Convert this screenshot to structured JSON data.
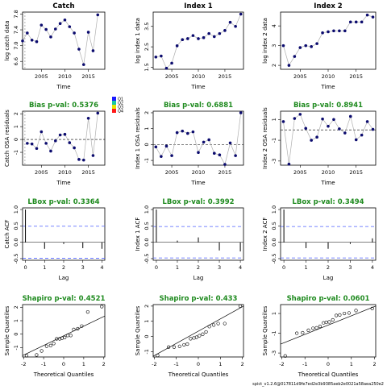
{
  "footer": "spict_v1.2.6@017811d9fe7ed2e3b9385aeb2e0021a58aea250e2",
  "colors": {
    "point": "#0b0b6e",
    "line": "#b0b0b0",
    "green": "#1e8a1e",
    "dashed": "#4a5cff",
    "sep": "#999999"
  },
  "legend": {
    "labels": [
      "Q1",
      "Q2",
      "Q3",
      "Q4"
    ],
    "colors": [
      "#1a1aff",
      "#18c9a3",
      "#e6e600",
      "#ff1a1a"
    ]
  },
  "chart_data": [
    {
      "id": "catch-data",
      "type": "line",
      "title": "Catch",
      "xlabel": "Time",
      "ylabel": "log catch data",
      "xlim": [
        2001,
        2018.5
      ],
      "ylim": [
        6.4,
        7.85
      ],
      "xticks": [
        2005,
        2010,
        2015
      ],
      "yticks": [
        6.6,
        7.0,
        7.4,
        7.8
      ],
      "vline": 2001.5,
      "points": [
        [
          2001,
          7.12
        ],
        [
          2002,
          7.32
        ],
        [
          2003,
          7.14
        ],
        [
          2004,
          7.1
        ],
        [
          2005,
          7.52
        ],
        [
          2006,
          7.41
        ],
        [
          2007,
          7.22
        ],
        [
          2008,
          7.42
        ],
        [
          2009,
          7.56
        ],
        [
          2010,
          7.65
        ],
        [
          2011,
          7.48
        ],
        [
          2012,
          7.32
        ],
        [
          2013,
          6.91
        ],
        [
          2014,
          6.52
        ],
        [
          2015,
          7.34
        ],
        [
          2016,
          6.87
        ],
        [
          2017,
          7.78
        ]
      ]
    },
    {
      "id": "index1-data",
      "type": "line",
      "title": "Index 1",
      "xlabel": "Time",
      "ylabel": "log index 1 data",
      "xlim": [
        2001.5,
        2018.5
      ],
      "ylim": [
        1.4,
        4.2
      ],
      "xticks": [
        2005,
        2010,
        2015
      ],
      "yticks": [
        1.5,
        2.5,
        3.5
      ],
      "points": [
        [
          2002,
          2.0
        ],
        [
          2003,
          2.05
        ],
        [
          2004,
          1.45
        ],
        [
          2005,
          1.7
        ],
        [
          2006,
          2.55
        ],
        [
          2007,
          2.85
        ],
        [
          2008,
          2.9
        ],
        [
          2009,
          3.05
        ],
        [
          2010,
          2.9
        ],
        [
          2011,
          2.95
        ],
        [
          2012,
          3.15
        ],
        [
          2013,
          3.0
        ],
        [
          2014,
          3.15
        ],
        [
          2015,
          3.3
        ],
        [
          2016,
          3.7
        ],
        [
          2017,
          3.5
        ],
        [
          2018,
          4.1
        ]
      ]
    },
    {
      "id": "index2-data",
      "type": "line",
      "title": "Index 2",
      "xlabel": "Time",
      "ylabel": "log index 2 data",
      "xlim": [
        2001.5,
        2018.5
      ],
      "ylim": [
        1.8,
        4.7
      ],
      "xticks": [
        2005,
        2010,
        2015
      ],
      "yticks": [
        2.0,
        3.0,
        4.0
      ],
      "points": [
        [
          2002,
          3.0
        ],
        [
          2003,
          2.0
        ],
        [
          2004,
          2.45
        ],
        [
          2005,
          2.9
        ],
        [
          2006,
          3.0
        ],
        [
          2007,
          2.95
        ],
        [
          2008,
          3.1
        ],
        [
          2009,
          3.65
        ],
        [
          2010,
          3.7
        ],
        [
          2011,
          3.75
        ],
        [
          2012,
          3.75
        ],
        [
          2013,
          3.75
        ],
        [
          2014,
          4.2
        ],
        [
          2015,
          4.2
        ],
        [
          2016,
          4.2
        ],
        [
          2017,
          4.55
        ],
        [
          2018,
          4.45
        ]
      ]
    },
    {
      "id": "catch-osa",
      "type": "line",
      "title": "Bias p-val: 0.5376",
      "xlabel": "Time",
      "ylabel": "Catch OSA residuals",
      "xlim": [
        2001,
        2018.5
      ],
      "ylim": [
        -2.0,
        2.2
      ],
      "xticks": [
        2005,
        2010,
        2015
      ],
      "yticks": [
        -1,
        0,
        1,
        2
      ],
      "hline": 0,
      "vline": 2001.5,
      "points": [
        [
          2002,
          -0.3
        ],
        [
          2003,
          -0.35
        ],
        [
          2004,
          -0.7
        ],
        [
          2005,
          0.6
        ],
        [
          2006,
          -0.3
        ],
        [
          2007,
          -0.9
        ],
        [
          2008,
          -0.1
        ],
        [
          2009,
          0.35
        ],
        [
          2010,
          0.4
        ],
        [
          2011,
          -0.25
        ],
        [
          2012,
          -0.65
        ],
        [
          2013,
          -1.55
        ],
        [
          2014,
          -1.6
        ],
        [
          2015,
          1.65
        ],
        [
          2016,
          -1.25
        ],
        [
          2017,
          2.05
        ]
      ]
    },
    {
      "id": "index1-osa",
      "type": "line",
      "title": "Bias p-val: 0.6881",
      "xlabel": "Time",
      "ylabel": "Index 1 OSA residuals",
      "xlim": [
        2001.5,
        2018.5
      ],
      "ylim": [
        -1.3,
        2.1
      ],
      "xticks": [
        2005,
        2010,
        2015
      ],
      "yticks": [
        -1.0,
        0.0,
        1.0,
        2.0
      ],
      "hline": 0,
      "points": [
        [
          2002,
          -0.15
        ],
        [
          2003,
          -0.75
        ],
        [
          2004,
          -0.1
        ],
        [
          2005,
          -0.7
        ],
        [
          2006,
          0.75
        ],
        [
          2007,
          0.85
        ],
        [
          2008,
          0.7
        ],
        [
          2009,
          0.8
        ],
        [
          2010,
          -0.5
        ],
        [
          2011,
          0.15
        ],
        [
          2012,
          0.3
        ],
        [
          2013,
          -0.55
        ],
        [
          2014,
          -0.65
        ],
        [
          2015,
          -1.25
        ],
        [
          2016,
          0.1
        ],
        [
          2017,
          -0.7
        ],
        [
          2018,
          2.0
        ]
      ]
    },
    {
      "id": "index2-osa",
      "type": "line",
      "title": "Bias p-val: 0.8941",
      "xlabel": "Time",
      "ylabel": "Index 2 OSA residuals",
      "xlim": [
        2001.5,
        2018.5
      ],
      "ylim": [
        -3.4,
        1.8
      ],
      "xticks": [
        2005,
        2010,
        2015
      ],
      "yticks": [
        -3,
        -1,
        1
      ],
      "hline": 0,
      "points": [
        [
          2002,
          0.8
        ],
        [
          2003,
          -3.3
        ],
        [
          2004,
          1.1
        ],
        [
          2005,
          1.5
        ],
        [
          2006,
          0.15
        ],
        [
          2007,
          -1.0
        ],
        [
          2008,
          -0.7
        ],
        [
          2009,
          1.05
        ],
        [
          2010,
          0.35
        ],
        [
          2011,
          1.0
        ],
        [
          2012,
          0.1
        ],
        [
          2013,
          -0.3
        ],
        [
          2014,
          1.3
        ],
        [
          2015,
          -0.95
        ],
        [
          2016,
          -0.5
        ],
        [
          2017,
          0.8
        ],
        [
          2018,
          0.05
        ]
      ]
    },
    {
      "id": "catch-acf",
      "type": "bar",
      "title": "LBox p-val: 0.3364",
      "xlabel": "Lag",
      "ylabel": "Catch ACF",
      "xlim": [
        -0.15,
        4.15
      ],
      "ylim": [
        -0.55,
        1.05
      ],
      "xticks": [
        0,
        1,
        2,
        3,
        4
      ],
      "yticks": [
        -0.5,
        0.0,
        0.5,
        1.0
      ],
      "conf": 0.49,
      "bars": [
        [
          0,
          1.0
        ],
        [
          1,
          -0.2
        ],
        [
          2,
          -0.05
        ],
        [
          3,
          -0.18
        ],
        [
          4,
          -0.2
        ]
      ]
    },
    {
      "id": "index1-acf",
      "type": "bar",
      "title": "LBox p-val: 0.3992",
      "xlabel": "Lag",
      "ylabel": "Index 1 ACF",
      "xlim": [
        -0.15,
        4.15
      ],
      "ylim": [
        -0.55,
        1.05
      ],
      "xticks": [
        0,
        1,
        2,
        3,
        4
      ],
      "yticks": [
        -0.5,
        0.0,
        0.5,
        1.0
      ],
      "conf": 0.48,
      "bars": [
        [
          0,
          1.0
        ],
        [
          1,
          0.05
        ],
        [
          2,
          0.15
        ],
        [
          3,
          -0.25
        ],
        [
          4,
          -0.28
        ]
      ]
    },
    {
      "id": "index2-acf",
      "type": "bar",
      "title": "LBox p-val: 0.3494",
      "xlabel": "Lag",
      "ylabel": "Index 2 ACF",
      "xlim": [
        -0.15,
        4.15
      ],
      "ylim": [
        -0.55,
        1.05
      ],
      "xticks": [
        0,
        1,
        2,
        3,
        4
      ],
      "yticks": [
        -0.5,
        0.0,
        0.5,
        1.0
      ],
      "conf": 0.48,
      "bars": [
        [
          0,
          1.0
        ],
        [
          1,
          -0.18
        ],
        [
          2,
          -0.2
        ],
        [
          3,
          -0.05
        ],
        [
          4,
          0.12
        ]
      ]
    },
    {
      "id": "catch-qq",
      "type": "scatter",
      "title": "Shapiro p-val: 0.4521",
      "xlabel": "Theoretical Quantiles",
      "ylabel": "Sample Quantiles",
      "xlim": [
        -2.05,
        2.05
      ],
      "ylim": [
        -1.7,
        2.2
      ],
      "xticks": [
        -2,
        -1,
        0,
        1,
        2
      ],
      "yticks": [
        -1,
        0,
        1,
        2
      ],
      "qqline": [
        [
          -2.05,
          -1.6
        ],
        [
          2.05,
          1.35
        ]
      ],
      "points": [
        [
          -1.85,
          -1.6
        ],
        [
          -1.35,
          -1.55
        ],
        [
          -1.1,
          -1.25
        ],
        [
          -0.85,
          -0.9
        ],
        [
          -0.65,
          -0.85
        ],
        [
          -0.5,
          -0.7
        ],
        [
          -0.35,
          -0.35
        ],
        [
          -0.2,
          -0.35
        ],
        [
          -0.08,
          -0.3
        ],
        [
          0.05,
          -0.25
        ],
        [
          0.2,
          -0.1
        ],
        [
          0.35,
          -0.1
        ],
        [
          0.5,
          0.35
        ],
        [
          0.7,
          0.4
        ],
        [
          0.9,
          0.6
        ],
        [
          1.2,
          1.65
        ],
        [
          1.9,
          2.05
        ]
      ]
    },
    {
      "id": "index1-qq",
      "type": "scatter",
      "title": "Shapiro p-val: 0.433",
      "xlabel": "Theoretical Quantiles",
      "ylabel": "Sample Quantiles",
      "xlim": [
        -2.05,
        2.05
      ],
      "ylim": [
        -1.35,
        2.1
      ],
      "xticks": [
        -2,
        -1,
        0,
        1,
        2
      ],
      "yticks": [
        -1.0,
        0.0,
        1.0,
        2.0
      ],
      "qqline": [
        [
          -2.05,
          -1.3
        ],
        [
          2.05,
          2.0
        ]
      ],
      "points": [
        [
          -1.85,
          -1.25
        ],
        [
          -1.35,
          -0.7
        ],
        [
          -1.1,
          -0.7
        ],
        [
          -0.85,
          -0.65
        ],
        [
          -0.65,
          -0.55
        ],
        [
          -0.5,
          -0.5
        ],
        [
          -0.35,
          -0.15
        ],
        [
          -0.2,
          -0.1
        ],
        [
          -0.08,
          -0.05
        ],
        [
          0.05,
          0.05
        ],
        [
          0.2,
          0.15
        ],
        [
          0.35,
          0.3
        ],
        [
          0.5,
          0.65
        ],
        [
          0.7,
          0.75
        ],
        [
          0.9,
          0.85
        ],
        [
          1.2,
          0.85
        ],
        [
          1.9,
          2.0
        ]
      ]
    },
    {
      "id": "index2-qq",
      "type": "scatter",
      "title": "Shapiro p-val: 0.0601",
      "xlabel": "Theoretical Quantiles",
      "ylabel": "Sample Quantiles",
      "xlim": [
        -2.05,
        2.05
      ],
      "ylim": [
        -3.4,
        1.9
      ],
      "xticks": [
        -2,
        -1,
        0,
        1,
        2
      ],
      "yticks": [
        -3,
        -1,
        1
      ],
      "qqline": [
        [
          -2.05,
          -2.1
        ],
        [
          2.05,
          1.75
        ]
      ],
      "points": [
        [
          -1.85,
          -3.3
        ],
        [
          -1.35,
          -1.0
        ],
        [
          -1.1,
          -0.95
        ],
        [
          -0.85,
          -0.7
        ],
        [
          -0.65,
          -0.5
        ],
        [
          -0.5,
          -0.45
        ],
        [
          -0.35,
          -0.3
        ],
        [
          -0.2,
          0.05
        ],
        [
          -0.08,
          0.1
        ],
        [
          0.05,
          0.15
        ],
        [
          0.2,
          0.35
        ],
        [
          0.35,
          0.8
        ],
        [
          0.5,
          0.85
        ],
        [
          0.7,
          1.0
        ],
        [
          0.9,
          1.05
        ],
        [
          1.2,
          1.3
        ],
        [
          1.9,
          1.5
        ]
      ]
    }
  ]
}
